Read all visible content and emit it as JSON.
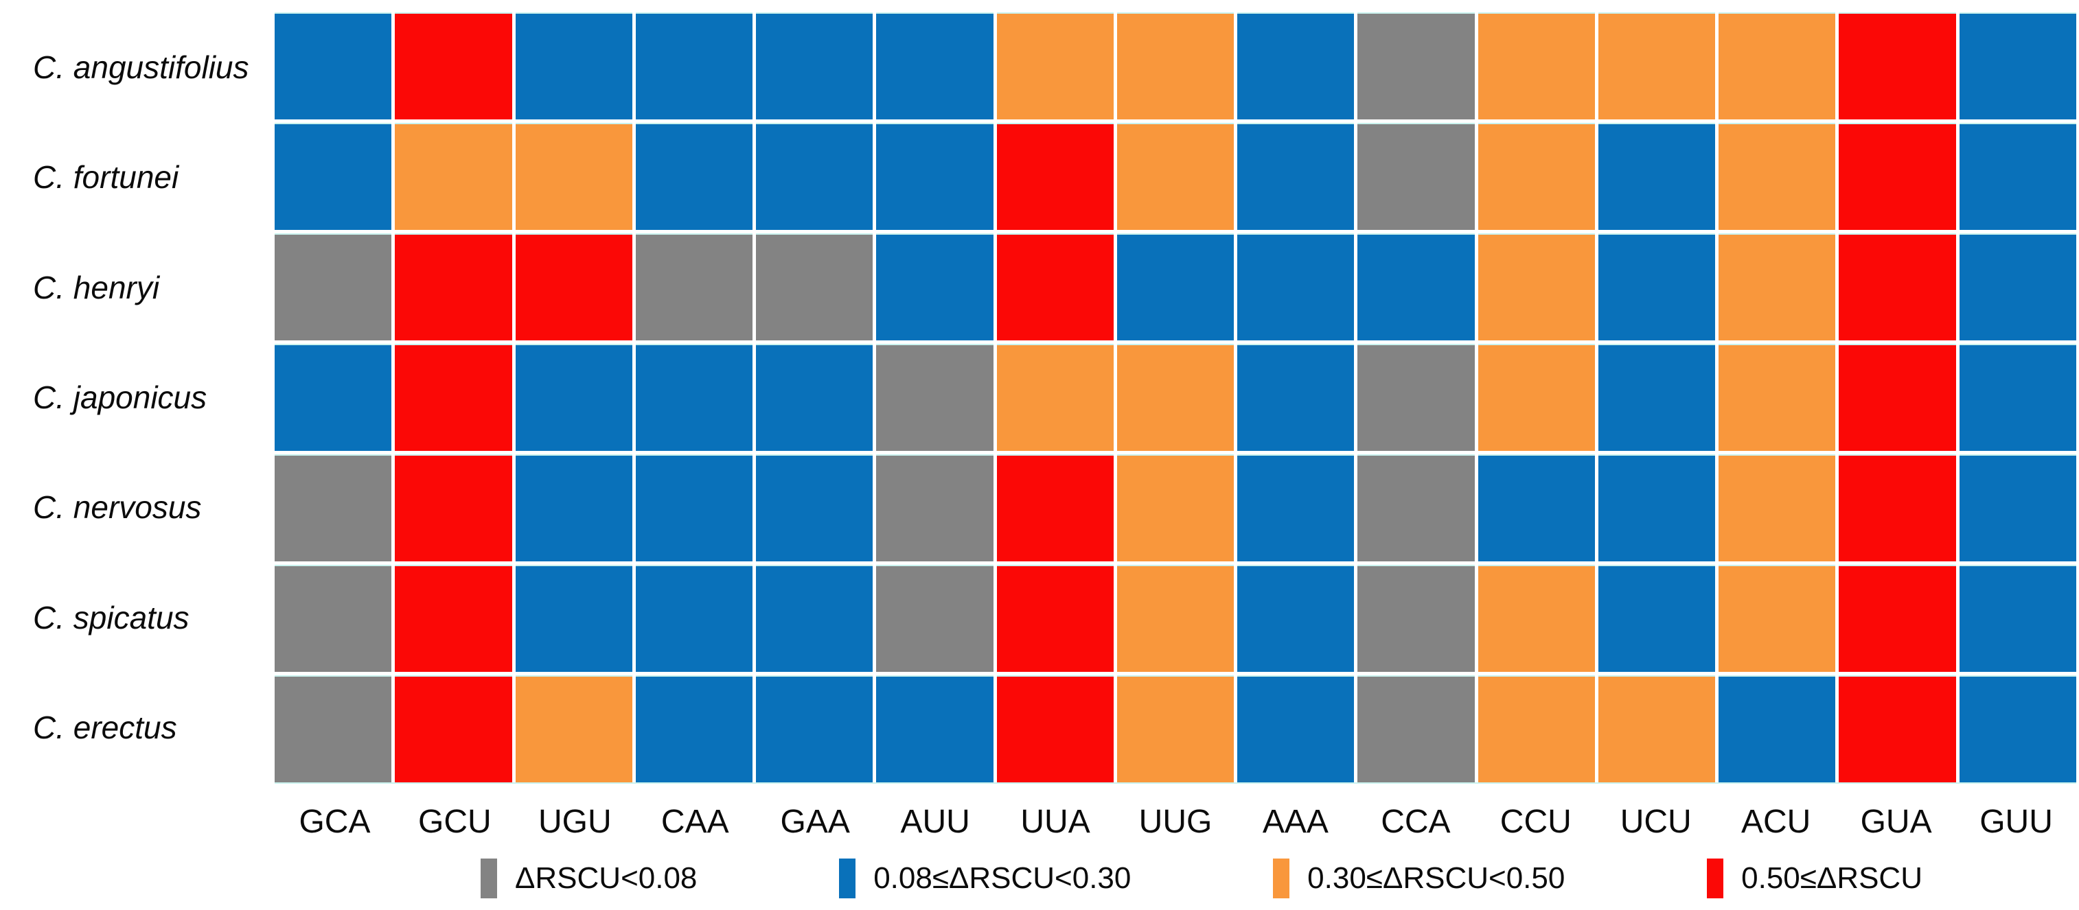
{
  "chart_data": {
    "type": "heatmap",
    "title": "",
    "xlabel": "",
    "ylabel": "",
    "grid": "white gaps between cells, thin pale-cyan horizontal rules",
    "legend_position": "bottom",
    "columns": [
      "GCA",
      "GCU",
      "UGU",
      "CAA",
      "GAA",
      "AUU",
      "UUA",
      "UUG",
      "AAA",
      "CCA",
      "CCU",
      "UCU",
      "ACU",
      "GUA",
      "GUU"
    ],
    "rows": [
      {
        "species": "C. angustifolius",
        "cells": [
          "B",
          "R",
          "B",
          "B",
          "B",
          "B",
          "O",
          "O",
          "B",
          "G",
          "O",
          "O",
          "O",
          "R",
          "B"
        ]
      },
      {
        "species": "C. fortunei",
        "cells": [
          "B",
          "O",
          "O",
          "B",
          "B",
          "B",
          "R",
          "O",
          "B",
          "G",
          "O",
          "B",
          "O",
          "R",
          "B"
        ]
      },
      {
        "species": "C. henryi",
        "cells": [
          "G",
          "R",
          "R",
          "G",
          "G",
          "B",
          "R",
          "B",
          "B",
          "B",
          "O",
          "B",
          "O",
          "R",
          "B"
        ]
      },
      {
        "species": "C. japonicus",
        "cells": [
          "B",
          "R",
          "B",
          "B",
          "B",
          "G",
          "O",
          "O",
          "B",
          "G",
          "O",
          "B",
          "O",
          "R",
          "B"
        ]
      },
      {
        "species": "C. nervosus",
        "cells": [
          "G",
          "R",
          "B",
          "B",
          "B",
          "G",
          "R",
          "O",
          "B",
          "G",
          "B",
          "B",
          "O",
          "R",
          "B"
        ]
      },
      {
        "species": "C. spicatus",
        "cells": [
          "G",
          "R",
          "B",
          "B",
          "B",
          "G",
          "R",
          "O",
          "B",
          "G",
          "O",
          "B",
          "O",
          "R",
          "B"
        ]
      },
      {
        "species": "C. erectus",
        "cells": [
          "G",
          "R",
          "O",
          "B",
          "B",
          "B",
          "R",
          "O",
          "B",
          "G",
          "O",
          "O",
          "B",
          "R",
          "B"
        ]
      }
    ],
    "categories_legend": [
      {
        "key": "G",
        "label": "ΔRSCU<0.08",
        "color": "#838383"
      },
      {
        "key": "B",
        "label": "0.08≤ΔRSCU<0.30",
        "color": "#0971BA"
      },
      {
        "key": "O",
        "label": "0.30≤ΔRSCU<0.50",
        "color": "#F9973C"
      },
      {
        "key": "R",
        "label": "0.50≤ΔRSCU",
        "color": "#FB0806"
      }
    ]
  },
  "colors": {
    "background": "#ffffff",
    "gridline_accent": "#c9f2ee",
    "text": "#0b0b0b"
  }
}
